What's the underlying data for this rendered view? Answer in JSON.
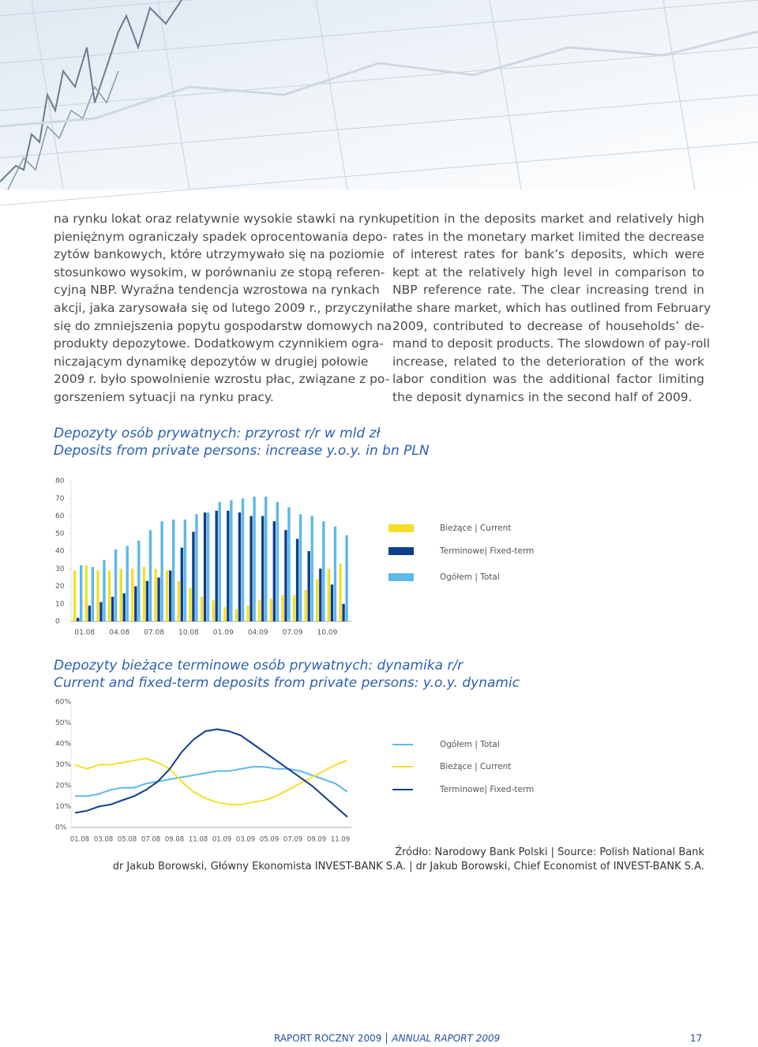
{
  "left_column": [
    "na rynku lokat oraz relatywnie wysokie stawki na rynku",
    "pieniężnym ograniczały spadek oprocentowania depo-",
    "zytów bankowych, które utrzymywało się na poziomie",
    "stosunkowo wysokim, w porównaniu ze stopą referen-",
    "cyjną NBP. Wyraźna tendencja wzrostowa na rynkach",
    "akcji, jaka zarysowała się od lutego 2009 r., przyczyniła",
    "się do zmniejszenia popytu gospodarstw domowych na",
    "produkty depozytowe. Dodatkowym czynnikiem ogra-",
    "niczającym dynamikę depozytów w drugiej połowie",
    "2009 r. było spowolnienie wzrostu płac, związane z po-",
    "gorszeniem sytuacji na rynku pracy."
  ],
  "right_column": [
    "petition in the deposits market and relatively high",
    "rates in the monetary market limited the decrease",
    "of interest rates for bank’s deposits, which were",
    "kept at the relatively high level in comparison to",
    "NBP reference rate. The clear increasing trend in",
    "the share market, which has outlined from February",
    "2009, contributed to decrease of households’ de-",
    "mand to deposit products. The slowdown of pay-roll",
    "increase, related to the deterioration of the work",
    "labor condition was the additional factor limiting",
    "the deposit dynamics in the second half of 2009."
  ],
  "chart_data": [
    {
      "type": "bar",
      "title": "Depozyty osób prywatnych: przyrost r/r w mld zł",
      "subtitle": "Deposits from private persons: increase y.o.y. in bn PLN",
      "categories": [
        "01.08",
        null,
        null,
        "04.08",
        null,
        null,
        "07.08",
        null,
        null,
        "10.08",
        null,
        null,
        "01.09",
        null,
        null,
        "04.09",
        null,
        null,
        "07.09",
        null,
        null,
        "10.09",
        null,
        null
      ],
      "series": [
        {
          "name": "Bieżące | Current",
          "color": "#f3df2a",
          "values": [
            29,
            32,
            29,
            29,
            30,
            30,
            31,
            30,
            29,
            23,
            19,
            14,
            12,
            8,
            7,
            9,
            12,
            13,
            15,
            15,
            18,
            24,
            30,
            33
          ]
        },
        {
          "name": "Terminowe| Fixed-term",
          "color": "#0d3f8f",
          "values": [
            2,
            9,
            11,
            14,
            16,
            20,
            23,
            25,
            29,
            42,
            51,
            62,
            63,
            63,
            62,
            60,
            60,
            57,
            52,
            47,
            40,
            30,
            21,
            10
          ]
        },
        {
          "name": "Ogółem | Total",
          "color": "#5cb9e9",
          "values": [
            32,
            31,
            35,
            41,
            43,
            46,
            52,
            57,
            58,
            58,
            61,
            62,
            68,
            69,
            70,
            71,
            71,
            68,
            65,
            61,
            60,
            57,
            54,
            49
          ]
        }
      ],
      "ylim": [
        0,
        80
      ],
      "yticks": [
        0,
        10,
        20,
        30,
        40,
        50,
        60,
        70,
        80
      ],
      "legend": "right"
    },
    {
      "type": "line",
      "title": "Depozyty bieżące terminowe osób prywatnych: dynamika r/r",
      "subtitle": "Current and fixed-term deposits from private persons: y.o.y. dynamic",
      "categories": [
        "01.08",
        null,
        "03.08",
        null,
        "05.08",
        null,
        "07.08",
        null,
        "09.08",
        null,
        "11.08",
        null,
        "01.09",
        null,
        "03.09",
        null,
        "05.09",
        null,
        "07.09",
        null,
        "09.09",
        null,
        "11.09",
        null
      ],
      "series": [
        {
          "name": "Ogółem | Total",
          "color": "#5cb9e9",
          "values": [
            15,
            15,
            16,
            18,
            19,
            19,
            21,
            22,
            23,
            24,
            25,
            26,
            27,
            27,
            28,
            29,
            29,
            28,
            28,
            27,
            25,
            23,
            21,
            17
          ]
        },
        {
          "name": "Bieżące | Current",
          "color": "#f3df2a",
          "values": [
            30,
            28,
            30,
            30,
            31,
            32,
            33,
            31,
            28,
            22,
            17,
            14,
            12,
            11,
            11,
            12,
            13,
            15,
            18,
            21,
            24,
            27,
            30,
            32
          ]
        },
        {
          "name": "Terminowe| Fixed-term",
          "color": "#0d3f8f",
          "values": [
            7,
            8,
            10,
            11,
            13,
            15,
            18,
            22,
            28,
            36,
            42,
            46,
            47,
            46,
            44,
            40,
            36,
            32,
            28,
            24,
            20,
            15,
            10,
            5
          ]
        }
      ],
      "ylim": [
        0,
        60
      ],
      "yticks": [
        {
          "value": 0,
          "label": "0%"
        },
        {
          "value": 10,
          "label": "10%"
        },
        {
          "value": 20,
          "label": "20%"
        },
        {
          "value": 30,
          "label": "30%"
        },
        {
          "value": 40,
          "label": "40%"
        },
        {
          "value": 50,
          "label": "50%"
        },
        {
          "value": 60,
          "label": "60%"
        }
      ],
      "legend": "right"
    }
  ],
  "source": "Źródło: Narodowy Bank Polski | Source: Polish National Bank",
  "author": "dr Jakub Borowski, Główny Ekonomista INVEST-BANK S.A. | dr Jakub Borowski, Chief Economist of INVEST-BANK S.A.",
  "footer": {
    "report_pl": "RAPORT ROCZNY 2009",
    "report_en": "ANNUAL RAPORT 2009",
    "page": "17"
  }
}
